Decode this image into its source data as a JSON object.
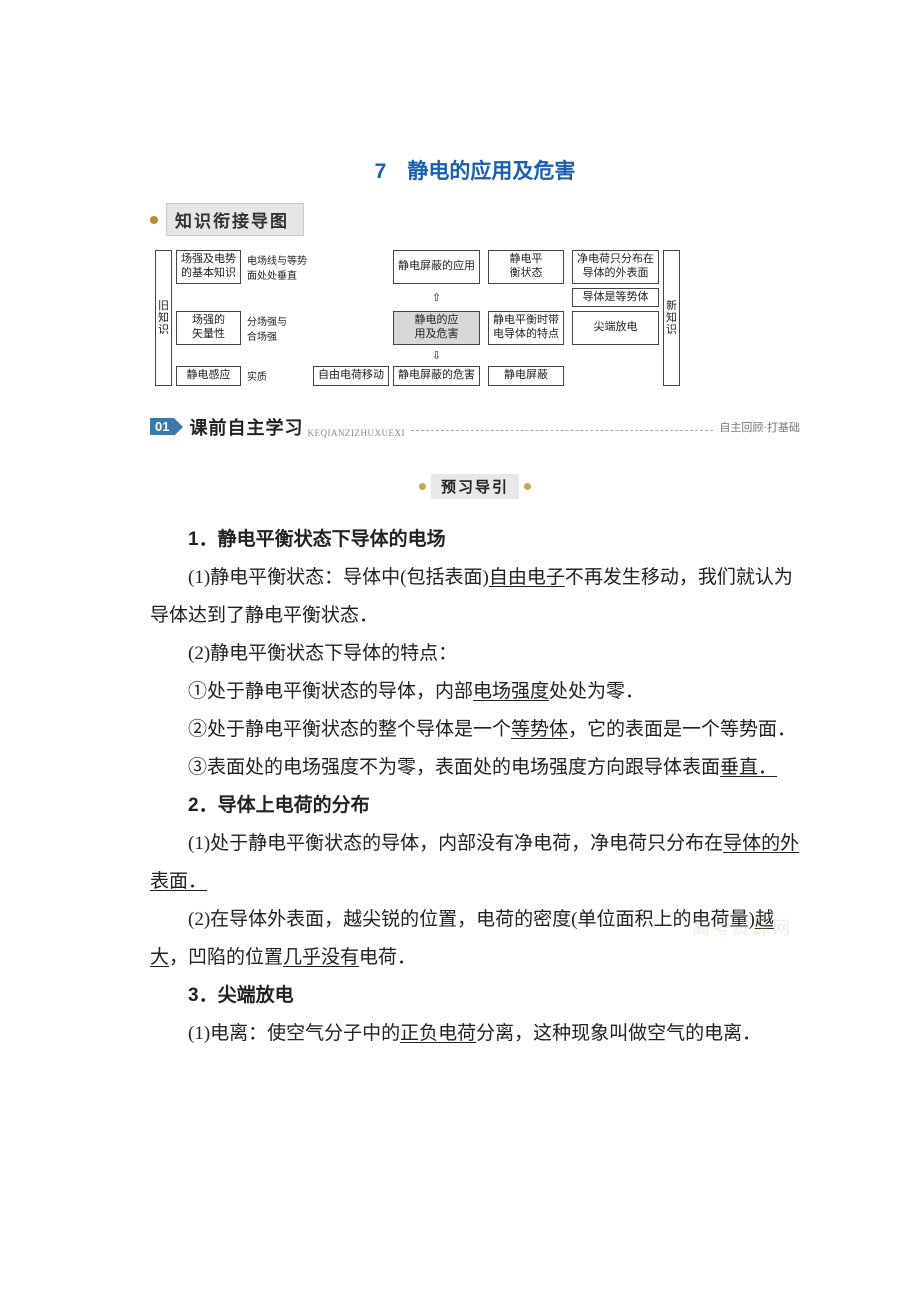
{
  "title": "7　静电的应用及危害",
  "banner1": {
    "label": "知识衔接导图"
  },
  "flowchart": {
    "type": "flowchart",
    "background_color": "#ffffff",
    "box_border_color": "#444444",
    "box_bg": "#ffffff",
    "center_bg": "#d8d8d8",
    "fontsize": 11,
    "left_label": "旧知识",
    "right_label": "新知识",
    "left_col": [
      {
        "l1": "场强及电势",
        "l2": "的基本知识",
        "arrow": "电场线与等势",
        "arrow2": "面处处垂直"
      },
      {
        "l1": "场强的",
        "l2": "矢量性",
        "arrow": "分场强与",
        "arrow2": "合场强"
      },
      {
        "l1": "静电感应",
        "arrow": "实质",
        "r": "自由电荷移动"
      }
    ],
    "center_top": "静电屏蔽的应用",
    "center": {
      "l1": "静电的应",
      "l2": "用及危害"
    },
    "center_bottom": "静电屏蔽的危害",
    "right_col_a": [
      {
        "l1": "静电平",
        "l2": "衡状态",
        "out1": {
          "l1": "净电荷只分布在",
          "l2": "导体的外表面"
        },
        "out2": "导体是等势体"
      },
      {
        "l1": "静电平衡时带",
        "l2": "电导体的特点",
        "out": "尖端放电"
      },
      {
        "l": "静电屏蔽"
      }
    ]
  },
  "section01": {
    "badge": "01",
    "title": "课前自主学习",
    "pinyin": "KEQIANZIZHUXUEXI",
    "right": "自主回顾·打基础"
  },
  "pill": "预习导引",
  "content": {
    "h1": "1．静电平衡状态下导体的电场",
    "p1a": "(1)静电平衡状态：导体中(包括表面)",
    "p1u": "自由电子",
    "p1b": "不再发生移动，我们就认为导体达到了静电平衡状态．",
    "p2": "(2)静电平衡状态下导体的特点：",
    "p3a": "①处于静电平衡状态的导体，内部",
    "p3u": "电场强度",
    "p3b": "处处为零．",
    "p4a": "②处于静电平衡状态的整个导体是一个",
    "p4u": "等势体",
    "p4b": "，它的表面是一个等势面．",
    "p5a": "③表面处的电场强度不为零，表面处的电场强度方向跟导体表面",
    "p5u": "垂直．",
    "h2": "2．导体上电荷的分布",
    "p6a": "(1)处于静电平衡状态的导体，内部没有净电荷，净电荷只分布在",
    "p6u": "导体的外表面．",
    "p7a": "(2)在导体外表面，越尖锐的位置，电荷的密度(单位面积上的电荷量)",
    "p7u1": "越大",
    "p7b": "，凹陷的位置",
    "p7u2": "几乎没有",
    "p7c": "电荷．",
    "h3": "3．尖端放电",
    "p8a": "(1)电离：使空气分子中的",
    "p8u": "正负电荷",
    "p8b": "分离，这种现象叫做空气的电离．"
  },
  "watermark": "高考资源网"
}
